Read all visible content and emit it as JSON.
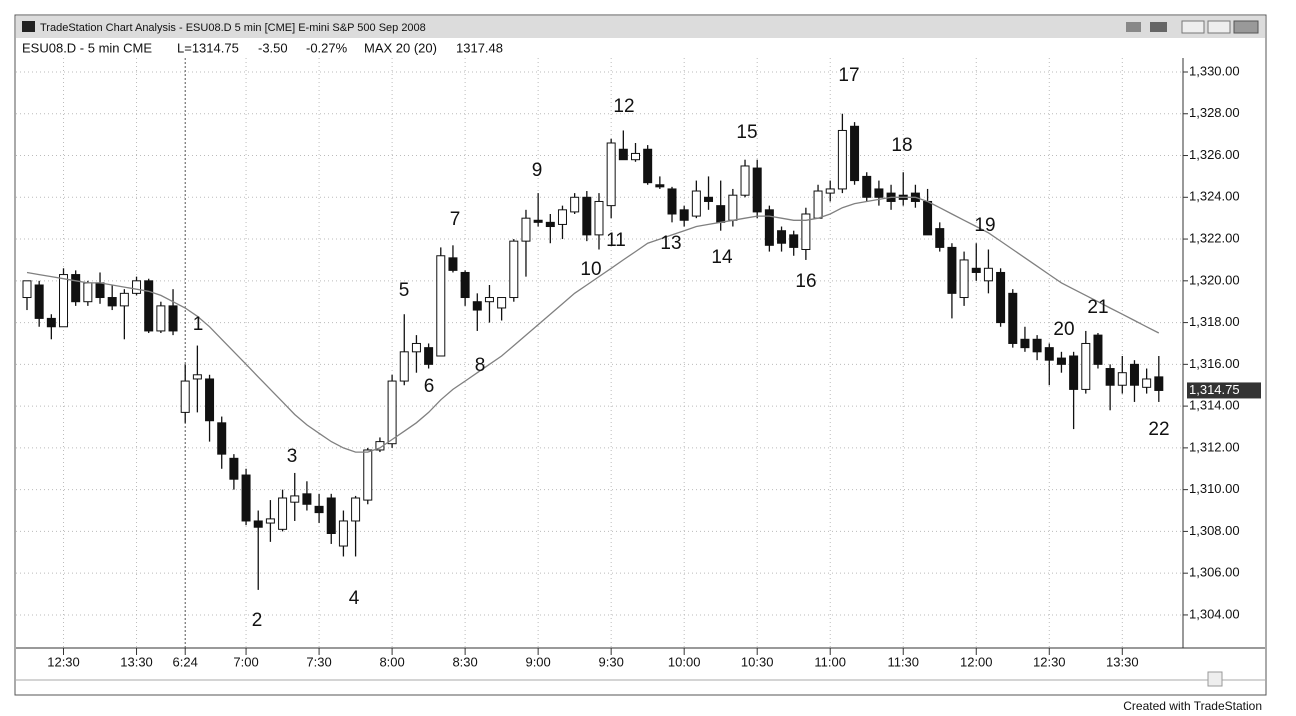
{
  "window_title": "TradeStation Chart Analysis - ESU08.D 5 min [CME] E-mini S&P 500 Sep 2008",
  "status_bar": {
    "symbol": "ESU08.D - 5 min CME",
    "last": "L=1314.75",
    "change": "-3.50",
    "pct_change": "-0.27%",
    "indicator": "MAX 20 (20)",
    "indicator_value": "1317.48"
  },
  "footer": "Created with TradeStation",
  "chart_data": {
    "type": "candlestick",
    "categories": [
      null,
      null,
      null,
      "12:30",
      null,
      null,
      null,
      null,
      null,
      "13:30",
      null,
      null,
      null,
      "6:24",
      null,
      null,
      null,
      null,
      "7:00",
      null,
      null,
      null,
      null,
      null,
      "7:30",
      null,
      null,
      null,
      null,
      null,
      "8:00",
      null,
      null,
      null,
      null,
      null,
      "8:30",
      null,
      null,
      null,
      null,
      null,
      "9:00",
      null,
      null,
      null,
      null,
      null,
      "9:30",
      null,
      null,
      null,
      null,
      null,
      "10:00",
      null,
      null,
      null,
      null,
      null,
      "10:30",
      null,
      null,
      null,
      null,
      null,
      "11:00",
      null,
      null,
      null,
      null,
      null,
      "11:30",
      null,
      null,
      null,
      null,
      null,
      "12:00",
      null,
      null,
      null,
      null,
      null,
      "12:30",
      null,
      null,
      null,
      null,
      null,
      "13:30",
      null,
      null,
      null
    ],
    "ohlc": {
      "open": [
        1319.2,
        1319.8,
        1318.2,
        1317.8,
        1320.3,
        1319.0,
        1319.9,
        1319.2,
        1318.8,
        1319.4,
        1320.0,
        1317.6,
        1318.8,
        1313.7,
        1315.3,
        1315.3,
        1313.2,
        1311.5,
        1310.7,
        1308.5,
        1308.4,
        1308.1,
        1309.4,
        1309.8,
        1309.2,
        1309.6,
        1307.3,
        1308.5,
        1309.5,
        1311.9,
        1312.2,
        1315.2,
        1316.6,
        1316.8,
        1316.4,
        1321.1,
        1320.4,
        1319.0,
        1319.0,
        1318.7,
        1319.2,
        1321.9,
        1322.9,
        1322.8,
        1322.7,
        1323.3,
        1324.0,
        1322.2,
        1323.6,
        1326.3,
        1325.8,
        1326.3,
        1324.6,
        1324.4,
        1323.4,
        1323.1,
        1324.0,
        1323.6,
        1322.9,
        1324.1,
        1325.4,
        1323.4,
        1322.4,
        1322.2,
        1321.5,
        1323.0,
        1324.2,
        1324.4,
        1327.4,
        1325.0,
        1324.4,
        1324.2,
        1324.1,
        1324.2,
        1323.8,
        1322.5,
        1321.6,
        1319.2,
        1320.6,
        1320.0,
        1320.4,
        1319.4,
        1317.2,
        1317.2,
        1316.8,
        1316.3,
        1316.4,
        1314.8,
        1317.4,
        1315.8,
        1315.0,
        1316.0,
        1314.9,
        1315.4
      ],
      "high": [
        1320.0,
        1320.0,
        1318.4,
        1320.6,
        1320.5,
        1320.0,
        1320.4,
        1319.8,
        1319.6,
        1320.2,
        1320.1,
        1319.0,
        1319.6,
        1316.0,
        1316.9,
        1315.5,
        1313.5,
        1311.7,
        1311.0,
        1309.0,
        1309.5,
        1310.0,
        1310.8,
        1310.4,
        1309.8,
        1309.8,
        1309.0,
        1309.7,
        1312.0,
        1312.5,
        1315.5,
        1318.4,
        1317.4,
        1317.0,
        1321.6,
        1321.7,
        1320.5,
        1319.4,
        1319.8,
        1319.2,
        1322.0,
        1323.4,
        1324.2,
        1323.2,
        1323.6,
        1324.2,
        1324.3,
        1324.2,
        1326.8,
        1327.2,
        1326.6,
        1326.5,
        1325.0,
        1324.5,
        1323.6,
        1324.8,
        1325.0,
        1324.8,
        1324.4,
        1325.8,
        1325.8,
        1323.6,
        1322.6,
        1322.4,
        1323.5,
        1324.6,
        1324.8,
        1328.0,
        1327.6,
        1325.2,
        1324.8,
        1324.6,
        1325.2,
        1324.6,
        1324.4,
        1322.8,
        1321.8,
        1321.4,
        1321.8,
        1321.5,
        1320.6,
        1319.6,
        1317.8,
        1317.4,
        1317.0,
        1316.6,
        1316.6,
        1317.6,
        1317.5,
        1316.0,
        1316.4,
        1316.2,
        1315.8,
        1316.4
      ],
      "low": [
        1318.6,
        1317.8,
        1317.2,
        1317.8,
        1318.8,
        1318.8,
        1318.9,
        1318.6,
        1317.2,
        1319.3,
        1317.5,
        1317.5,
        1317.4,
        1313.2,
        1313.7,
        1312.3,
        1311.0,
        1310.0,
        1308.3,
        1305.2,
        1307.5,
        1308.0,
        1308.5,
        1309.0,
        1308.4,
        1307.4,
        1306.8,
        1306.8,
        1309.3,
        1311.8,
        1312.0,
        1315.0,
        1315.6,
        1315.8,
        1316.4,
        1320.4,
        1318.8,
        1317.6,
        1318.0,
        1318.1,
        1319.0,
        1320.2,
        1322.6,
        1321.8,
        1322.0,
        1323.2,
        1321.9,
        1321.5,
        1323.0,
        1325.8,
        1325.7,
        1324.6,
        1324.4,
        1322.8,
        1322.6,
        1323.0,
        1323.4,
        1322.4,
        1322.6,
        1324.0,
        1323.0,
        1321.4,
        1321.4,
        1321.2,
        1321.0,
        1323.0,
        1323.8,
        1324.2,
        1324.6,
        1323.8,
        1323.6,
        1323.4,
        1323.6,
        1323.5,
        1322.2,
        1321.4,
        1318.2,
        1318.8,
        1320.0,
        1319.4,
        1317.8,
        1316.8,
        1316.6,
        1316.2,
        1315.0,
        1315.6,
        1312.9,
        1314.6,
        1315.8,
        1313.8,
        1314.6,
        1314.2,
        1314.6,
        1314.2
      ],
      "close": [
        1320.0,
        1318.2,
        1317.8,
        1320.3,
        1319.0,
        1319.9,
        1319.2,
        1318.8,
        1319.4,
        1320.0,
        1317.6,
        1318.8,
        1317.6,
        1315.2,
        1315.5,
        1313.3,
        1311.7,
        1310.5,
        1308.5,
        1308.2,
        1308.6,
        1309.6,
        1309.7,
        1309.3,
        1308.9,
        1307.9,
        1308.5,
        1309.6,
        1311.9,
        1312.3,
        1315.2,
        1316.6,
        1317.0,
        1316.0,
        1321.2,
        1320.5,
        1319.2,
        1318.6,
        1319.2,
        1319.2,
        1321.9,
        1323.0,
        1322.8,
        1322.6,
        1323.4,
        1324.0,
        1322.2,
        1323.8,
        1326.6,
        1325.8,
        1326.1,
        1324.7,
        1324.5,
        1323.2,
        1322.9,
        1324.3,
        1323.8,
        1322.8,
        1324.1,
        1325.5,
        1323.3,
        1321.7,
        1321.8,
        1321.6,
        1323.2,
        1324.3,
        1324.4,
        1327.2,
        1324.8,
        1324.0,
        1324.0,
        1323.8,
        1323.9,
        1323.8,
        1322.2,
        1321.6,
        1319.4,
        1321.0,
        1320.4,
        1320.6,
        1318.0,
        1317.0,
        1316.8,
        1316.6,
        1316.2,
        1316.0,
        1314.8,
        1317.0,
        1316.0,
        1315.0,
        1315.6,
        1315.0,
        1315.3,
        1314.75
      ]
    },
    "up_color": "#ffffff",
    "down_color": "#111111",
    "wick_color": "#111111",
    "moving_average": {
      "color": "#808080",
      "values": [
        1320.4,
        1320.3,
        1320.2,
        1320.1,
        1320.0,
        1319.9,
        1319.9,
        1319.8,
        1319.7,
        1319.6,
        1319.5,
        1319.3,
        1319.0,
        1318.7,
        1318.3,
        1317.8,
        1317.2,
        1316.6,
        1316.0,
        1315.4,
        1314.8,
        1314.2,
        1313.6,
        1313.1,
        1312.7,
        1312.3,
        1312.0,
        1311.8,
        1311.8,
        1312.0,
        1312.4,
        1312.8,
        1313.2,
        1313.7,
        1314.3,
        1314.8,
        1315.2,
        1315.6,
        1316.0,
        1316.4,
        1316.9,
        1317.4,
        1317.9,
        1318.4,
        1318.9,
        1319.4,
        1319.8,
        1320.2,
        1320.6,
        1321.0,
        1321.4,
        1321.8,
        1322.0,
        1322.2,
        1322.4,
        1322.6,
        1322.7,
        1322.8,
        1322.9,
        1323.0,
        1323.1,
        1323.1,
        1323.0,
        1322.9,
        1322.9,
        1323.0,
        1323.2,
        1323.5,
        1323.7,
        1323.8,
        1323.9,
        1324.0,
        1324.0,
        1324.0,
        1323.8,
        1323.5,
        1323.2,
        1322.9,
        1322.6,
        1322.3,
        1321.9,
        1321.5,
        1321.1,
        1320.7,
        1320.3,
        1319.9,
        1319.6,
        1319.3,
        1319.0,
        1318.7,
        1318.4,
        1318.1,
        1317.8,
        1317.5
      ]
    },
    "ylim": [
      1302.8,
      1330.67
    ],
    "yticks": [
      {
        "value": 1304,
        "label": "1,304.00"
      },
      {
        "value": 1306,
        "label": "1,306.00"
      },
      {
        "value": 1308,
        "label": "1,308.00"
      },
      {
        "value": 1310,
        "label": "1,310.00"
      },
      {
        "value": 1312,
        "label": "1,312.00"
      },
      {
        "value": 1314,
        "label": "1,314.00"
      },
      {
        "value": 1316,
        "label": "1,316.00"
      },
      {
        "value": 1318,
        "label": "1,318.00"
      },
      {
        "value": 1320,
        "label": "1,320.00"
      },
      {
        "value": 1322,
        "label": "1,322.00"
      },
      {
        "value": 1324,
        "label": "1,324.00"
      },
      {
        "value": 1326,
        "label": "1,326.00"
      },
      {
        "value": 1328,
        "label": "1,328.00"
      },
      {
        "value": 1330,
        "label": "1,330.00"
      }
    ],
    "grid": true,
    "last_price": {
      "value": 1314.75,
      "label": "1,314.75"
    },
    "annotations": [
      "1",
      "2",
      "3",
      "4",
      "5",
      "6",
      "7",
      "8",
      "9",
      "10",
      "11",
      "12",
      "13",
      "14",
      "15",
      "16",
      "17",
      "18",
      "19",
      "20",
      "21",
      "22"
    ]
  }
}
